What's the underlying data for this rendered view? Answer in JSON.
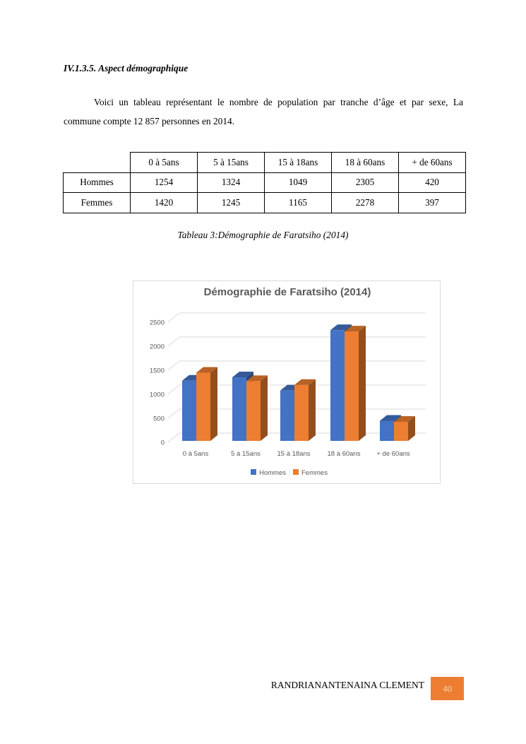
{
  "page": {
    "heading": "IV.1.3.5. Aspect démographique",
    "paragraph": {
      "line1": "Voici un tableau représentant le nombre de population par tranche d’âge et par sexe, La",
      "line2": "commune compte 12 857 personnes en 2014."
    },
    "table": {
      "col_headers": [
        "0 à 5ans",
        "5 à 15ans",
        "15 à 18ans",
        "18 à 60ans",
        "+ de 60ans"
      ],
      "rows": [
        {
          "label": "Hommes",
          "values": [
            "1254",
            "1324",
            "1049",
            "2305",
            "420"
          ]
        },
        {
          "label": "Femmes",
          "values": [
            "1420",
            "1245",
            "1165",
            "2278",
            "397"
          ]
        }
      ]
    },
    "table_caption": "Tableau 3:Démographie de Faratsiho (2014)",
    "footer": {
      "author": "RANDRIANANTENAINA CLEMENT",
      "page_number": "40",
      "accent_color": "#ED7D31",
      "page_number_text_color": "#FAD2AE"
    }
  },
  "chart_data": {
    "type": "bar",
    "style": "3d-clustered-column",
    "title": "Démographie de Faratsiho (2014)",
    "categories": [
      "0 à 5ans",
      "5 à 15ans",
      "15 à 18ans",
      "18 à 60ans",
      "+ de 60ans"
    ],
    "series": [
      {
        "name": "Hommes",
        "color": "#4472C4",
        "values": [
          1254,
          1324,
          1049,
          2305,
          420
        ]
      },
      {
        "name": "Femmes",
        "color": "#ED7D31",
        "values": [
          1420,
          1245,
          1165,
          2278,
          397
        ]
      }
    ],
    "y_ticks": [
      0,
      500,
      1000,
      1500,
      2000,
      2500
    ],
    "ylim": [
      0,
      2500
    ],
    "gridlines": true,
    "legend_position": "bottom",
    "text_color": "#595959",
    "gridline_color": "#D9D9D9"
  }
}
